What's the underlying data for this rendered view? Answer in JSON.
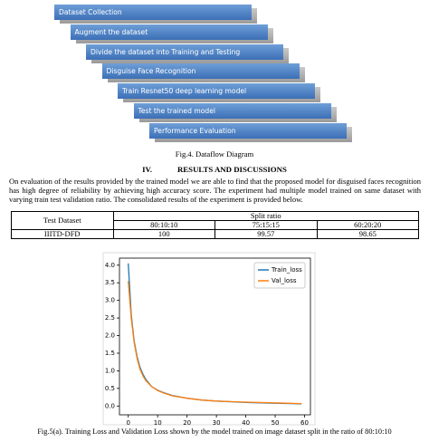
{
  "diagram": {
    "steps": [
      "Dataset Collection",
      "Augment the dataset",
      "Divide the dataset into Training and Testing",
      "Disguise Face Recognition",
      "Train Resnet50 deep learning model",
      "Test the trained model",
      "Performance Evaluation"
    ],
    "caption": "Fig.4. Dataflow Diagram"
  },
  "section": {
    "number": "IV.",
    "title": "RESULTS AND DISCUSSIONS"
  },
  "paragraph": "On evaluation of the results provided by the trained model we are able to find that the proposed model for disguised faces recognition has high degree of reliability by achieving high accuracy score. The experiment had multiple model trained on same dataset with varying train test validation ratio. The consolidated results of the experiment is provided below.",
  "table": {
    "row_header": "Test Dataset",
    "group_header": "Split ratio",
    "columns": [
      "80:10:10",
      "75:15:15",
      "60:20:20"
    ],
    "rows": [
      [
        "IIITD-DFD",
        100,
        99.57,
        98.65
      ]
    ]
  },
  "chart_data": {
    "type": "line",
    "x": [
      0,
      1,
      2,
      3,
      4,
      5,
      6,
      8,
      10,
      12,
      15,
      20,
      25,
      30,
      40,
      50,
      59
    ],
    "series": [
      {
        "name": "Train_loss",
        "color": "#1f77b4",
        "values": [
          4.05,
          2.6,
          1.85,
          1.4,
          1.1,
          0.9,
          0.75,
          0.55,
          0.45,
          0.38,
          0.3,
          0.22,
          0.17,
          0.14,
          0.1,
          0.08,
          0.06
        ]
      },
      {
        "name": "Val_loss",
        "color": "#ff7f0e",
        "values": [
          3.55,
          2.5,
          1.8,
          1.35,
          1.05,
          0.85,
          0.72,
          0.55,
          0.44,
          0.37,
          0.29,
          0.22,
          0.17,
          0.14,
          0.11,
          0.09,
          0.07
        ]
      }
    ],
    "xlim": [
      -3,
      62
    ],
    "ylim": [
      -0.25,
      4.2
    ],
    "xticks": [
      0,
      10,
      20,
      30,
      40,
      50,
      60
    ],
    "yticks": [
      {
        "value": 0,
        "label": "0.0"
      },
      0.5,
      {
        "value": 1,
        "label": "1.0"
      },
      1.5,
      {
        "value": 2,
        "label": "2.0"
      },
      2.5,
      {
        "value": 3,
        "label": "3.0"
      },
      3.5,
      {
        "value": 4,
        "label": "4.0"
      }
    ],
    "legend": "upper right"
  },
  "figure_caption": "Fig.5(a). Training Loss and Validation Loss shown by the model trained on image dataset split in the ratio of 80:10:10"
}
